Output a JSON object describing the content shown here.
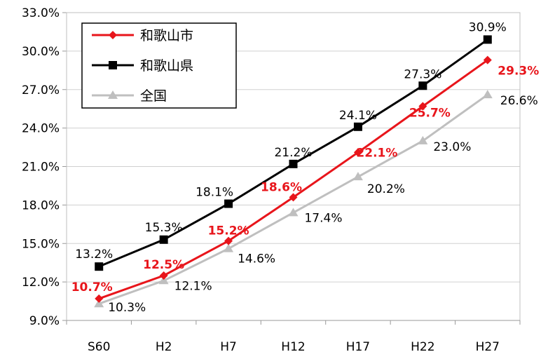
{
  "chart_data": {
    "type": "line",
    "categories": [
      "S60",
      "H2",
      "H7",
      "H12",
      "H17",
      "H22",
      "H27"
    ],
    "ylim": [
      9.0,
      33.0
    ],
    "yticks": [
      "9.0%",
      "12.0%",
      "15.0%",
      "18.0%",
      "21.0%",
      "24.0%",
      "27.0%",
      "30.0%",
      "33.0%"
    ],
    "grid": true,
    "legend_position": "top-left",
    "series": [
      {
        "name": "和歌山市",
        "color": "#e8151b",
        "marker": "diamond",
        "values": [
          10.7,
          12.5,
          15.2,
          18.6,
          22.1,
          25.7,
          29.3
        ],
        "labels": [
          "10.7%",
          "12.5%",
          "15.2%",
          "18.6%",
          "22.1%",
          "25.7%",
          "29.3%"
        ]
      },
      {
        "name": "和歌山県",
        "color": "#000000",
        "marker": "square",
        "values": [
          13.2,
          15.3,
          18.1,
          21.2,
          24.1,
          27.3,
          30.9
        ],
        "labels": [
          "13.2%",
          "15.3%",
          "18.1%",
          "21.2%",
          "24.1%",
          "27.3%",
          "30.9%"
        ]
      },
      {
        "name": "全国",
        "color": "#bfbfbf",
        "marker": "triangle",
        "values": [
          10.3,
          12.1,
          14.6,
          17.4,
          20.2,
          23.0,
          26.6
        ],
        "labels": [
          "10.3%",
          "12.1%",
          "14.6%",
          "17.4%",
          "20.2%",
          "23.0%",
          "26.6%"
        ]
      }
    ]
  }
}
